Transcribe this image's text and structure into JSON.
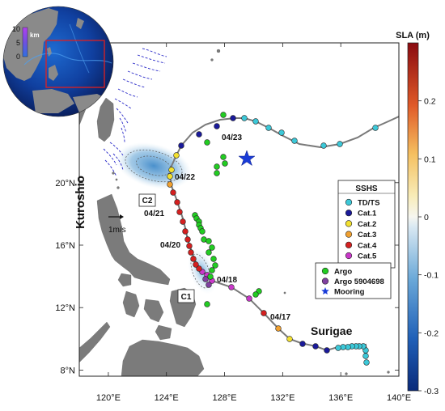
{
  "map": {
    "colorbar": {
      "title": "SLA (m)",
      "ticks": [
        {
          "value": 0.2,
          "label": "0.2"
        },
        {
          "value": 0.1,
          "label": "0.1"
        },
        {
          "value": 0,
          "label": "0"
        },
        {
          "value": -0.1,
          "label": "-0.1"
        },
        {
          "value": -0.2,
          "label": "-0.2"
        },
        {
          "value": -0.3,
          "label": "-0.3"
        }
      ],
      "range": [
        -0.3,
        0.3
      ]
    },
    "axes": {
      "lon_ticks": [
        {
          "value": 120,
          "label": "120°E"
        },
        {
          "value": 124,
          "label": "124°E"
        },
        {
          "value": 128,
          "label": "128°E"
        },
        {
          "value": 132,
          "label": "132°E"
        },
        {
          "value": 136,
          "label": "136°E"
        },
        {
          "value": 140,
          "label": "140°E"
        }
      ],
      "lat_ticks": [
        {
          "value": 20,
          "label": "20°N"
        },
        {
          "value": 16,
          "label": "16°N"
        },
        {
          "value": 12,
          "label": "12°N"
        },
        {
          "value": 8,
          "label": "8°N"
        }
      ]
    },
    "labels": {
      "kuroshio": "Kuroshio",
      "surigae": "Surigae",
      "scale_vector": "1m/s",
      "c1": "C1",
      "c2": "C2"
    },
    "date_labels": [
      "04/23",
      "04/22",
      "04/21",
      "04/20",
      "04/18",
      "04/17"
    ],
    "sshs_legend": {
      "title": "SSHS",
      "items": [
        {
          "label": "TD/TS",
          "color": "#3cc8d8"
        },
        {
          "label": "Cat.1",
          "color": "#1a1a9a"
        },
        {
          "label": "Cat.2",
          "color": "#f2e030"
        },
        {
          "label": "Cat.3",
          "color": "#f0a030"
        },
        {
          "label": "Cat.4",
          "color": "#d42020"
        },
        {
          "label": "Cat.5",
          "color": "#c838c8"
        }
      ]
    },
    "obs_legend": {
      "items": [
        {
          "label": "Argo",
          "color": "#22cc22",
          "shape": "circle"
        },
        {
          "label": "Argo 5904698",
          "color": "#8040a0",
          "shape": "circle"
        },
        {
          "label": "Mooring",
          "color": "#1a3cd8",
          "shape": "star"
        }
      ]
    },
    "inset": {
      "unit": "km",
      "ticks": [
        "10",
        "5",
        "0"
      ]
    }
  }
}
